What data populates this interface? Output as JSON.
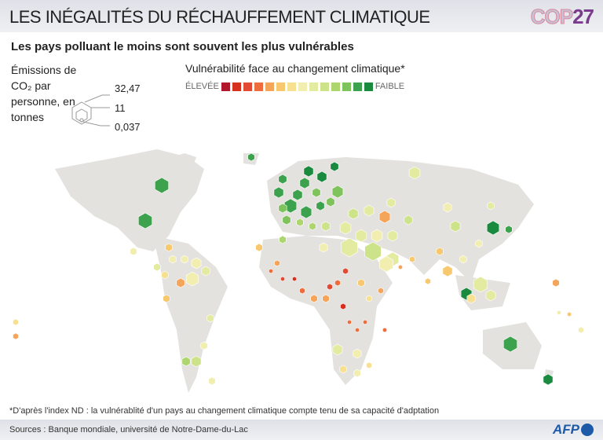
{
  "header": {
    "title": "LES INÉGALITÉS DU RÉCHAUFFEMENT CLIMATIQUE",
    "logo_cop": "COP",
    "logo_num": "27"
  },
  "subtitle": "Les pays polluant le moins sont souvent les plus vulnérables",
  "size_legend": {
    "label": "Émissions de CO₂ par personne, en tonnes",
    "values": [
      "32,47",
      "11",
      "0,037"
    ]
  },
  "color_legend": {
    "title": "Vulnérabilité face au changement climatique*",
    "low_label": "ÉLEVÉE",
    "high_label": "FAIBLE",
    "colors": [
      "#b2182b",
      "#d7301f",
      "#e34a33",
      "#ef6c3c",
      "#f5a55a",
      "#f7c86e",
      "#f7e08f",
      "#f2eeb0",
      "#e3eba0",
      "#cde38a",
      "#aed66f",
      "#7fc35c",
      "#3da24e",
      "#1a8a3f"
    ]
  },
  "footnote": "*D'après l'index ND : la vulnérablité d'un pays au changement climatique compte tenu de sa capacité d'adptation",
  "footer": {
    "sources": "Sources : Banque mondiale, université de Notre-Dame-du-Lac",
    "brand": "AFP"
  }
}
